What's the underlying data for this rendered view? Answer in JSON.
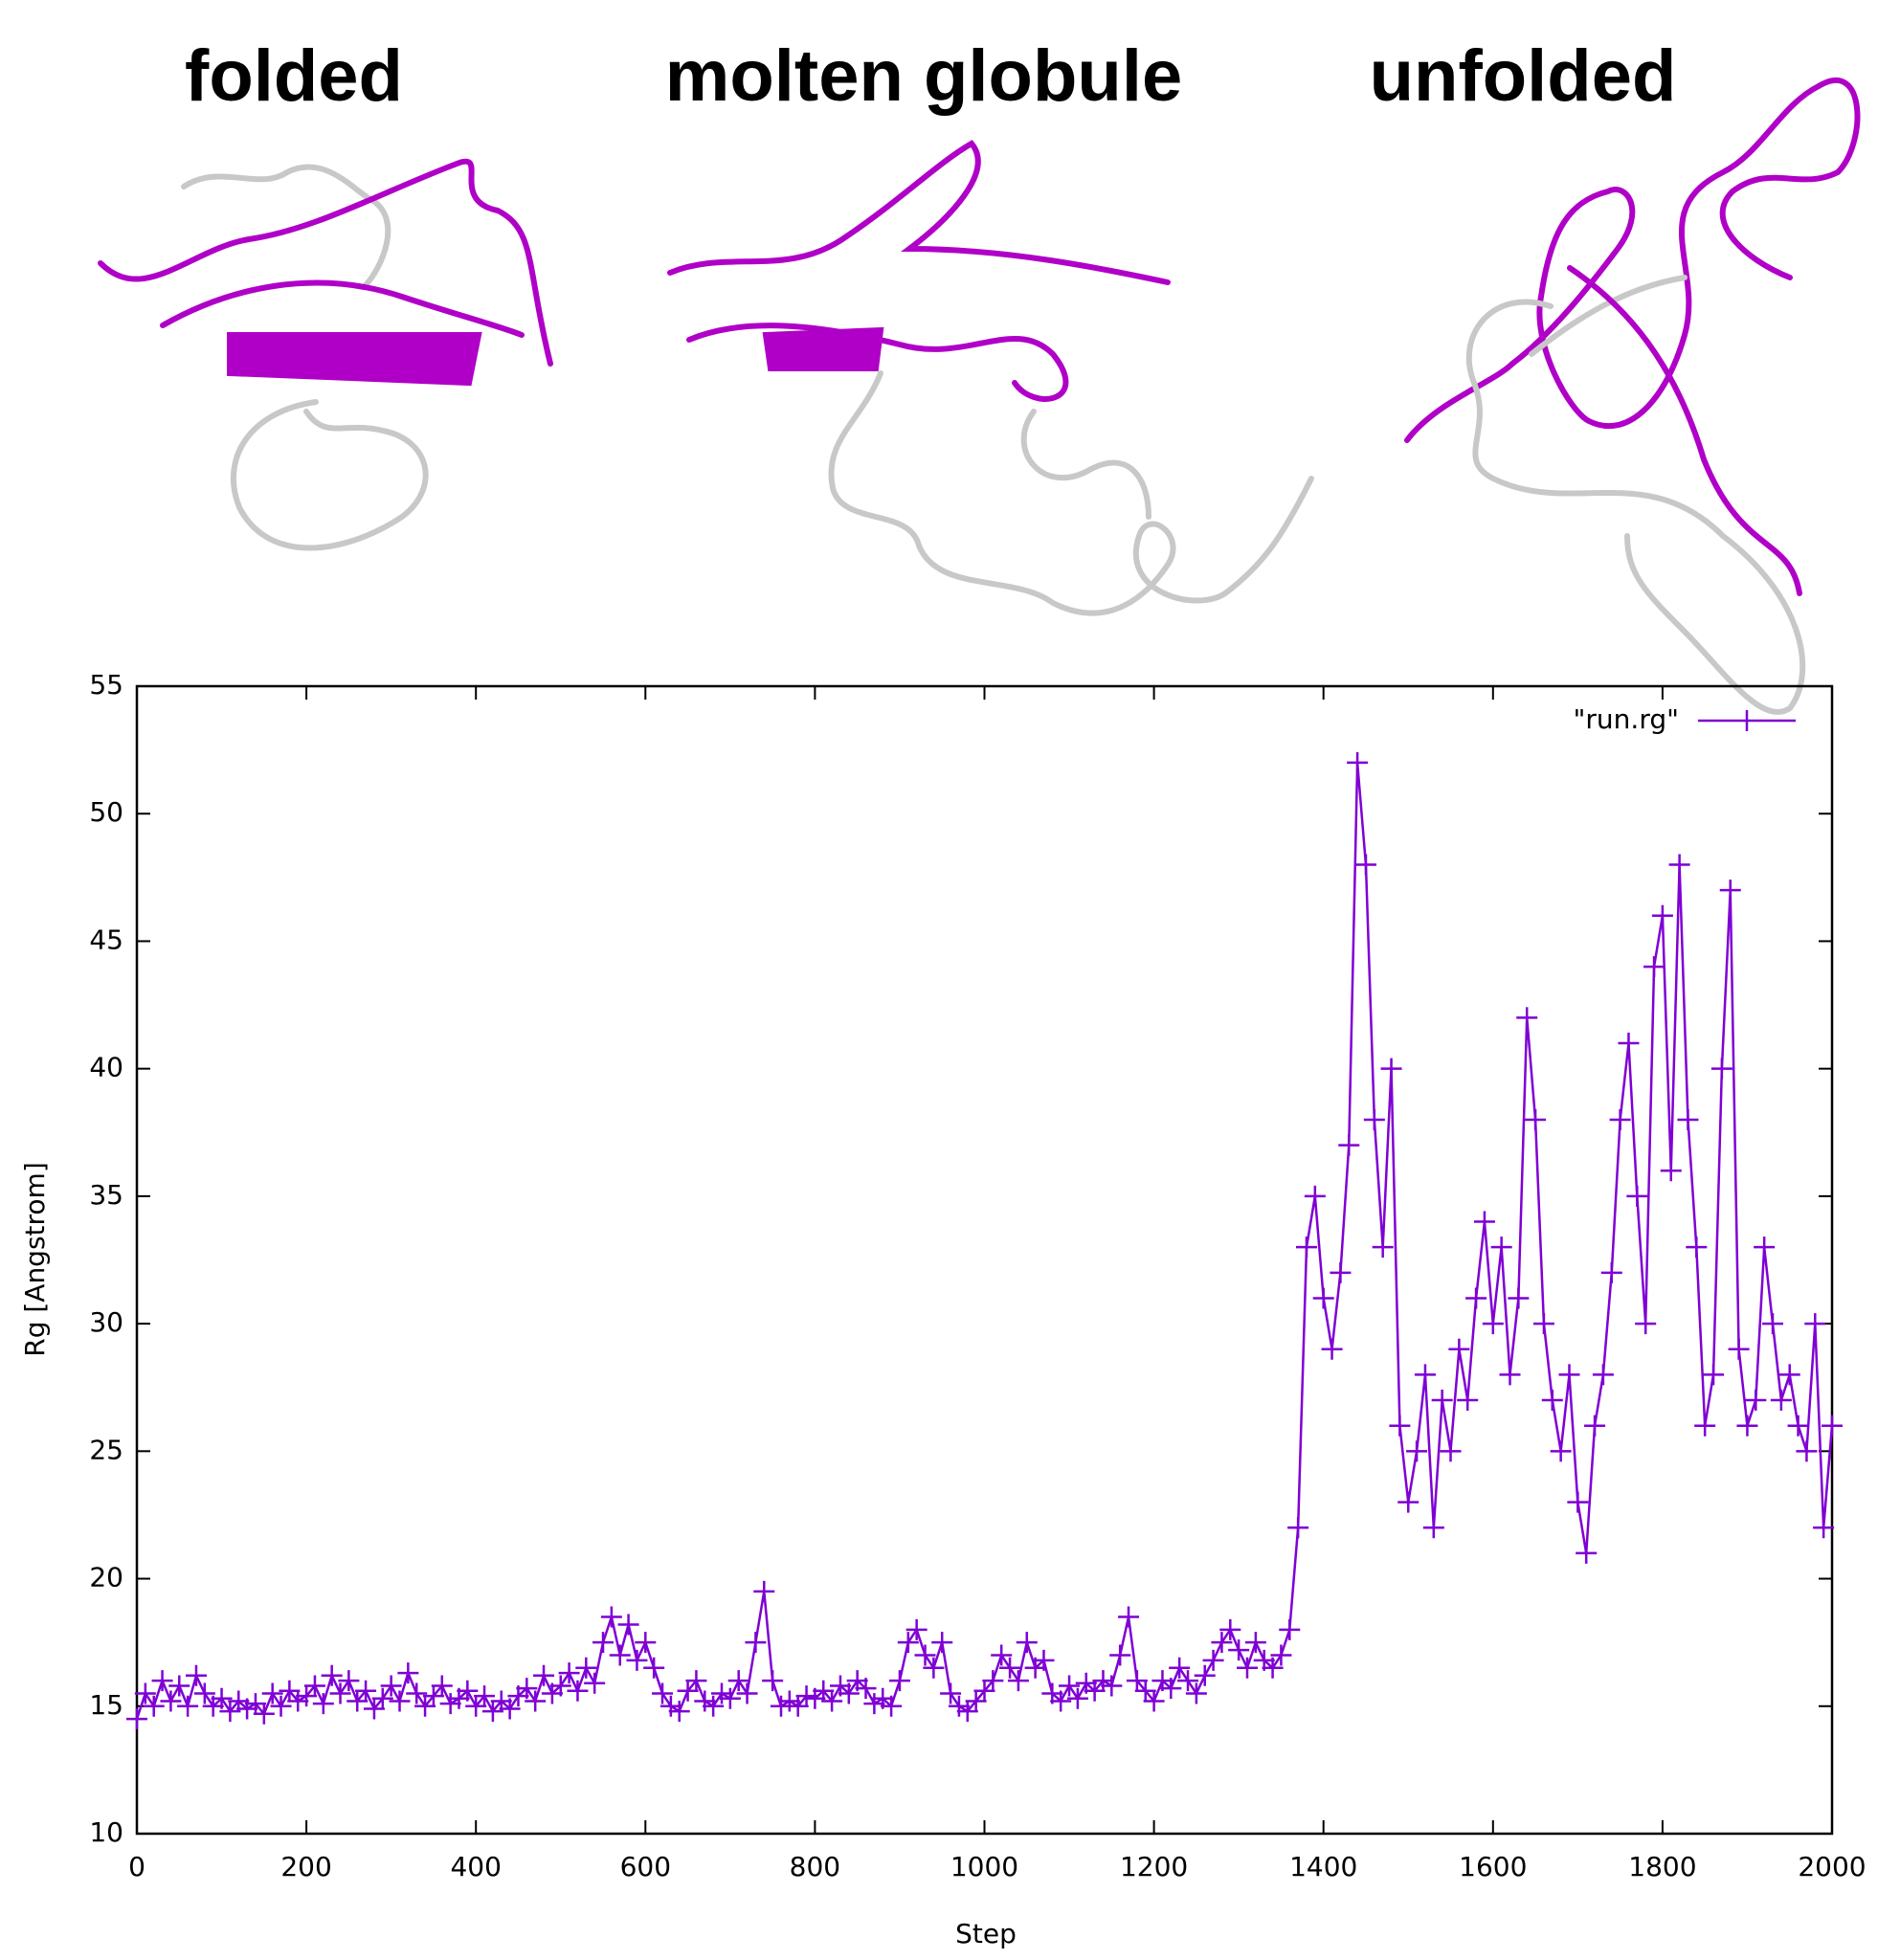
{
  "chart_data": {
    "type": "line",
    "annotations": [
      "folded",
      "molten globule",
      "unfolded"
    ],
    "xlabel": "Step",
    "ylabel": "Rg [Angstrom]",
    "xlim": [
      0,
      2000
    ],
    "xticks": [
      0,
      200,
      400,
      600,
      800,
      1000,
      1200,
      1400,
      1600,
      1800,
      2000
    ],
    "ylim": [
      10,
      55
    ],
    "yticks": [
      10,
      15,
      20,
      25,
      30,
      35,
      40,
      45,
      50,
      55
    ],
    "legend": "top-right",
    "x": [
      0,
      10,
      20,
      30,
      40,
      50,
      60,
      70,
      80,
      90,
      100,
      110,
      120,
      130,
      140,
      150,
      160,
      170,
      180,
      190,
      200,
      210,
      220,
      230,
      240,
      250,
      260,
      270,
      280,
      290,
      300,
      310,
      320,
      330,
      340,
      350,
      360,
      370,
      380,
      390,
      400,
      410,
      420,
      430,
      440,
      450,
      460,
      470,
      480,
      490,
      500,
      510,
      520,
      530,
      540,
      550,
      560,
      570,
      580,
      590,
      600,
      610,
      620,
      630,
      640,
      650,
      660,
      670,
      680,
      690,
      700,
      710,
      720,
      730,
      740,
      750,
      760,
      770,
      780,
      790,
      800,
      810,
      820,
      830,
      840,
      850,
      860,
      870,
      880,
      890,
      900,
      910,
      920,
      930,
      940,
      950,
      960,
      970,
      980,
      990,
      1000,
      1010,
      1020,
      1030,
      1040,
      1050,
      1060,
      1070,
      1080,
      1090,
      1100,
      1110,
      1120,
      1130,
      1140,
      1150,
      1160,
      1170,
      1180,
      1190,
      1200,
      1210,
      1220,
      1230,
      1240,
      1250,
      1260,
      1270,
      1280,
      1290,
      1300,
      1310,
      1320,
      1330,
      1340,
      1350,
      1360,
      1370,
      1380,
      1390,
      1400,
      1410,
      1420,
      1430,
      1440,
      1450,
      1460,
      1470,
      1480,
      1490,
      1500,
      1510,
      1520,
      1530,
      1540,
      1550,
      1560,
      1570,
      1580,
      1590,
      1600,
      1610,
      1620,
      1630,
      1640,
      1650,
      1660,
      1670,
      1680,
      1690,
      1700,
      1710,
      1720,
      1730,
      1740,
      1750,
      1760,
      1770,
      1780,
      1790,
      1800,
      1810,
      1820,
      1830,
      1840,
      1850,
      1860,
      1870,
      1880,
      1890,
      1900,
      1910,
      1920,
      1930,
      1940,
      1950,
      1960,
      1970,
      1980,
      1990,
      2000
    ],
    "series": [
      {
        "name": "\"run.rg\"",
        "color": "#7f00d4",
        "values": [
          14.5,
          15.5,
          15,
          16,
          15.2,
          15.8,
          15,
          16.2,
          15.5,
          15,
          15.3,
          14.8,
          15.2,
          14.9,
          15.1,
          14.7,
          15.5,
          15,
          15.6,
          15.2,
          15.4,
          15.8,
          15.1,
          16.2,
          15.5,
          16,
          15.2,
          15.6,
          14.9,
          15.3,
          15.8,
          15.2,
          16.3,
          15.5,
          15,
          15.4,
          15.8,
          15.1,
          15.3,
          15.6,
          15,
          15.4,
          14.8,
          15.2,
          14.9,
          15.4,
          15.7,
          15.2,
          16.2,
          15.5,
          15.8,
          16.3,
          15.6,
          16.5,
          15.9,
          17.5,
          18.5,
          17,
          18.2,
          16.8,
          17.5,
          16.5,
          15.5,
          15,
          14.8,
          15.6,
          16,
          15.2,
          15,
          15.5,
          15.3,
          16,
          15.5,
          17.5,
          19.5,
          16,
          15,
          15.2,
          15,
          15.4,
          15.3,
          15.6,
          15.2,
          15.8,
          15.5,
          16,
          15.7,
          15.1,
          15.3,
          15,
          16,
          17.5,
          18,
          17,
          16.5,
          17.5,
          15.5,
          15,
          14.8,
          15.2,
          15.6,
          16,
          17,
          16.5,
          16,
          17.5,
          16.5,
          16.8,
          15.5,
          15.2,
          15.8,
          15.3,
          15.9,
          15.6,
          16,
          15.8,
          17,
          18.5,
          16,
          15.6,
          15.2,
          16,
          15.7,
          16.5,
          16,
          15.5,
          16.2,
          16.8,
          17.5,
          18,
          17.2,
          16.5,
          17.5,
          16.8,
          16.5,
          17,
          18,
          22,
          33,
          35,
          31,
          29,
          32,
          37,
          52,
          48,
          38,
          33,
          40,
          26,
          23,
          25,
          28,
          22,
          27,
          25,
          29,
          27,
          31,
          34,
          30,
          33,
          28,
          31,
          42,
          38,
          30,
          27,
          25,
          28,
          23,
          21,
          26,
          28,
          32,
          38,
          41,
          35,
          30,
          44,
          46,
          36,
          48,
          38,
          33,
          26,
          28,
          40,
          47,
          29,
          26,
          27,
          33,
          30,
          27,
          28,
          26,
          25,
          30,
          22,
          26
        ]
      }
    ]
  }
}
